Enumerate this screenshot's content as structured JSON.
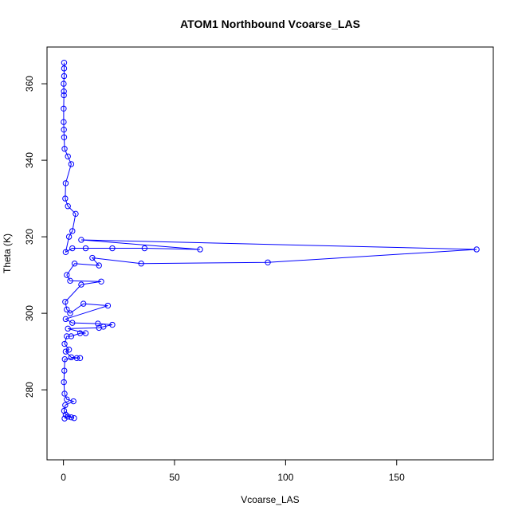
{
  "chart_data": {
    "type": "line",
    "title": "ATOM1 Northbound Vcoarse_LAS",
    "x_label": "Vcoarse_LAS",
    "y_label": "Theta (K)",
    "color": "#0000ff",
    "markers": "open-circle",
    "x": [
      0.5,
      2,
      3.5,
      4.8,
      1,
      0.3,
      0.8,
      4.5,
      1.5,
      0.5,
      0.2,
      0.4,
      0.6,
      6,
      7.5,
      3.5,
      1,
      2.5,
      0.5,
      1.5,
      3.5,
      7.5,
      10,
      2,
      16,
      18,
      22,
      15.5,
      4,
      1,
      20,
      9,
      3,
      1.5,
      0.8,
      8,
      17,
      3,
      1.5,
      5,
      16,
      13,
      35,
      92,
      186,
      8,
      61.5,
      36.5,
      22,
      10,
      4,
      1,
      2.5,
      4,
      5.5,
      2,
      0.8,
      1,
      3.5,
      2,
      0.5,
      0.3,
      0.2,
      0.1,
      0.1,
      0.2,
      0.2,
      0.1,
      0.3,
      0.3,
      0.3
    ],
    "values": [
      272.5,
      273,
      272.8,
      272.6,
      273.5,
      274.5,
      276,
      277,
      277.5,
      279,
      282,
      285,
      288,
      288.3,
      288.3,
      288.5,
      290,
      290.5,
      292,
      294,
      294,
      294.8,
      294.8,
      296,
      296.2,
      296.5,
      297,
      297.3,
      297.5,
      298.5,
      302,
      302.5,
      300,
      301,
      303,
      307.5,
      308.3,
      308.5,
      310,
      313,
      312.5,
      314.5,
      313,
      313.3,
      316.7,
      319.2,
      316.7,
      317,
      317,
      317,
      317,
      316,
      320,
      321.5,
      326,
      328,
      330,
      334,
      339,
      341,
      343,
      346,
      348,
      350,
      353.5,
      357,
      358,
      360,
      362,
      364,
      365.5
    ],
    "xlim": [
      -7.4,
      193.5
    ],
    "ylim": [
      261.7,
      369.6
    ],
    "xticks": [
      0,
      50,
      100,
      150
    ],
    "yticks": [
      280,
      300,
      320,
      340,
      360
    ]
  }
}
